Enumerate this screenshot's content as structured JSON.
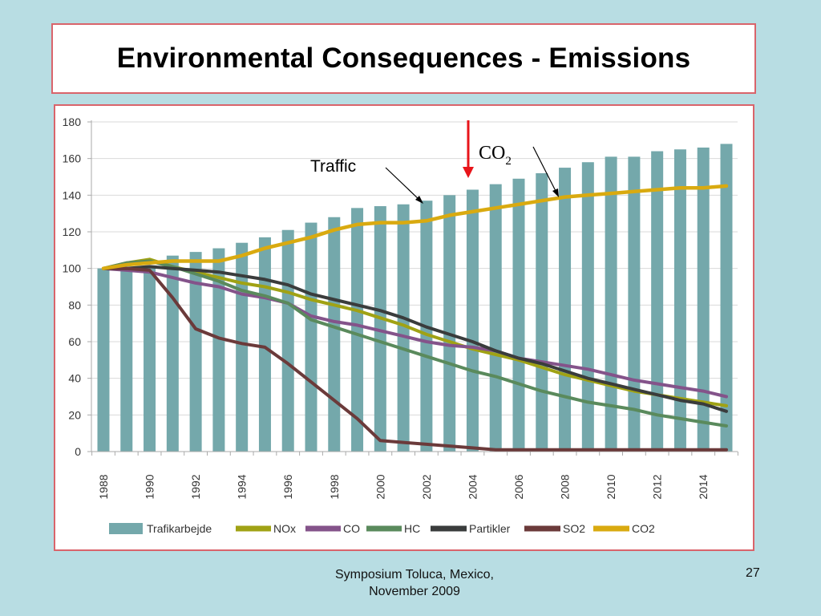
{
  "slide": {
    "title": "Environmental Consequences - Emissions",
    "footer_line1": "Symposium  Toluca, Mexico,",
    "footer_line2": "November 2009",
    "page_number": "27"
  },
  "annotations": {
    "traffic_label": "Traffic",
    "co2_label_main": "CO",
    "co2_label_sub": "2"
  },
  "chart_data": {
    "type": "bar",
    "title": "",
    "xlabel": "",
    "ylabel": "",
    "ylim": [
      0,
      180
    ],
    "yticks": [
      0,
      20,
      40,
      60,
      80,
      100,
      120,
      140,
      160,
      180
    ],
    "grid": true,
    "legend_position": "bottom",
    "categories": [
      1988,
      1989,
      1990,
      1991,
      1992,
      1993,
      1994,
      1995,
      1996,
      1997,
      1998,
      1999,
      2000,
      2001,
      2002,
      2003,
      2004,
      2005,
      2006,
      2007,
      2008,
      2009,
      2010,
      2011,
      2012,
      2013,
      2014,
      2015
    ],
    "xtick_labels": [
      "1988",
      "1990",
      "1992",
      "1994",
      "1996",
      "1998",
      "2000",
      "2002",
      "2004",
      "2006",
      "2008",
      "2010",
      "2012",
      "2014"
    ],
    "bar_series": {
      "name": "Trafikarbejde",
      "color": "#74a8ab",
      "values": [
        100,
        101,
        101,
        107,
        109,
        111,
        114,
        117,
        121,
        125,
        128,
        133,
        134,
        135,
        137,
        140,
        143,
        146,
        149,
        152,
        155,
        158,
        161,
        161,
        164,
        165,
        166,
        168
      ]
    },
    "series": [
      {
        "name": "NOx",
        "color": "#a0a214",
        "values": [
          100,
          103,
          105,
          101,
          98,
          95,
          92,
          90,
          87,
          83,
          80,
          77,
          73,
          69,
          64,
          60,
          56,
          53,
          50,
          46,
          42,
          39,
          36,
          33,
          31,
          29,
          27,
          25
        ]
      },
      {
        "name": "CO",
        "color": "#84538a",
        "values": [
          100,
          99,
          98,
          95,
          92,
          90,
          86,
          84,
          81,
          74,
          71,
          69,
          66,
          63,
          60,
          58,
          57,
          55,
          51,
          49,
          47,
          45,
          42,
          39,
          37,
          35,
          33,
          30
        ]
      },
      {
        "name": "HC",
        "color": "#5a8a5c",
        "values": [
          100,
          103,
          104,
          101,
          97,
          93,
          88,
          85,
          81,
          72,
          68,
          64,
          60,
          56,
          52,
          48,
          44,
          41,
          37,
          33,
          30,
          27,
          25,
          23,
          20,
          18,
          16,
          14
        ]
      },
      {
        "name": "Partikler",
        "color": "#3a3c3c",
        "values": [
          100,
          100,
          101,
          100,
          99,
          98,
          96,
          94,
          91,
          86,
          83,
          80,
          77,
          73,
          68,
          64,
          60,
          55,
          51,
          48,
          44,
          40,
          37,
          34,
          31,
          28,
          26,
          22
        ]
      },
      {
        "name": "SO2",
        "color": "#6b3a3a",
        "values": [
          100,
          100,
          99,
          84,
          67,
          62,
          59,
          57,
          48,
          38,
          28,
          18,
          6,
          5,
          4,
          3,
          2,
          1,
          1,
          1,
          1,
          1,
          1,
          1,
          1,
          1,
          1,
          1
        ]
      },
      {
        "name": "CO2",
        "color": "#d9aa10",
        "values": [
          100,
          102,
          103,
          104,
          104,
          104,
          107,
          111,
          114,
          117,
          121,
          124,
          125,
          125,
          126,
          129,
          131,
          133,
          135,
          137,
          139,
          140,
          141,
          142,
          143,
          144,
          144,
          145
        ]
      }
    ],
    "legend": [
      "Trafikarbejde",
      "NOx",
      "CO",
      "HC",
      "Partikler",
      "SO2",
      "CO2"
    ]
  }
}
